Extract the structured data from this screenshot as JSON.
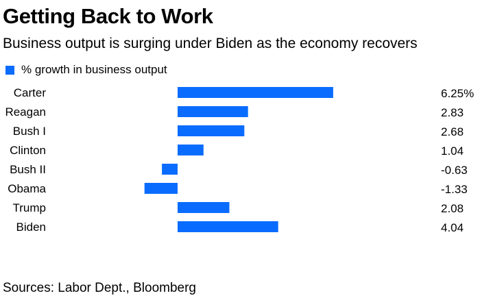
{
  "title": "Getting Back to Work",
  "subtitle": "Business output is surging under Biden as the economy recovers",
  "source": "Sources: Labor Dept., Bloomberg",
  "colors": {
    "bar": "#0a6cff"
  },
  "chart_data": {
    "type": "bar",
    "orientation": "horizontal",
    "title": "Getting Back to Work",
    "subtitle": "Business output is surging under Biden as the economy recovers",
    "categories": [
      "Carter",
      "Reagan",
      "Bush I",
      "Clinton",
      "Bush II",
      "Obama",
      "Trump",
      "Biden"
    ],
    "series": [
      {
        "name": "% growth in business output",
        "values": [
          6.25,
          2.83,
          2.68,
          1.04,
          -0.63,
          -1.33,
          2.08,
          4.04
        ],
        "labels": [
          "6.25%",
          "2.83",
          "2.68",
          "1.04",
          "-0.63",
          "-1.33",
          "2.08",
          "4.04"
        ]
      }
    ],
    "legend_position": "top-left",
    "grid": false,
    "xlim": [
      -1.33,
      6.25
    ]
  }
}
